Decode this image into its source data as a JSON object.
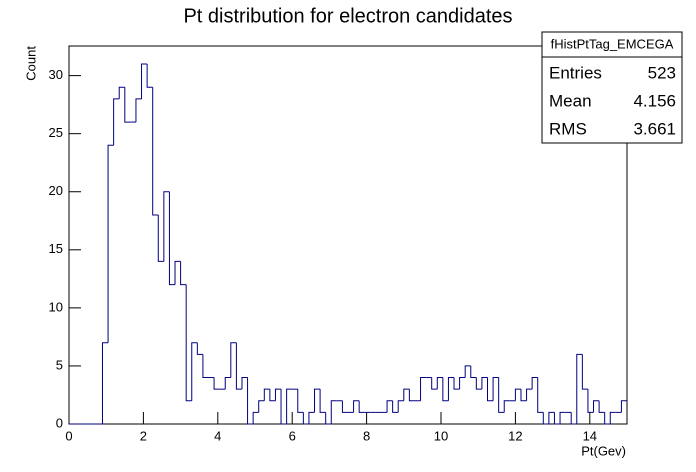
{
  "chart_data": {
    "type": "histogram",
    "title": "Pt distribution for electron candidates",
    "x_label": "Pt(Gev)",
    "y_label": "Count",
    "color": "#000080",
    "bins": [
      0,
      0.15,
      0.3,
      0.45,
      0.6,
      0.75,
      0.9,
      1.05,
      1.2,
      1.35,
      1.5,
      1.65,
      1.8,
      1.95,
      2.1,
      2.25,
      2.4,
      2.55,
      2.7,
      2.85,
      3,
      3.15,
      3.3,
      3.45,
      3.6,
      3.75,
      3.9,
      4.05,
      4.2,
      4.35,
      4.5,
      4.65,
      4.8,
      4.95,
      5.1,
      5.25,
      5.4,
      5.55,
      5.7,
      5.85,
      6,
      6.15,
      6.3,
      6.45,
      6.6,
      6.75,
      6.9,
      7.05,
      7.2,
      7.35,
      7.5,
      7.65,
      7.8,
      7.95,
      8.1,
      8.25,
      8.4,
      8.55,
      8.7,
      8.85,
      9,
      9.15,
      9.3,
      9.45,
      9.6,
      9.75,
      9.9,
      10.05,
      10.2,
      10.35,
      10.5,
      10.65,
      10.8,
      10.95,
      11.1,
      11.25,
      11.4,
      11.55,
      11.7,
      11.85,
      12,
      12.15,
      12.3,
      12.45,
      12.6,
      12.75,
      12.9,
      13.05,
      13.2,
      13.35,
      13.5,
      13.65,
      13.8,
      13.95,
      14.1,
      14.25,
      14.4,
      14.55,
      14.7,
      14.85,
      15
    ],
    "values": [
      0,
      0,
      0,
      0,
      0,
      0,
      7,
      24,
      28,
      29,
      26,
      26,
      28,
      31,
      29,
      18,
      14,
      20,
      12,
      14,
      12,
      2,
      7,
      6,
      4,
      4,
      3,
      3,
      4,
      7,
      3,
      4,
      0,
      1,
      2,
      3,
      2,
      3,
      0,
      3,
      3,
      1,
      0,
      1,
      3,
      1,
      0,
      2,
      2,
      1,
      1,
      2,
      1,
      1,
      1,
      1,
      1,
      2,
      1,
      2,
      3,
      2,
      2,
      4,
      4,
      3,
      4,
      2,
      4,
      3,
      4,
      5,
      4,
      3,
      4,
      2,
      4,
      1,
      2,
      2,
      3,
      2,
      3,
      4,
      1,
      0,
      1,
      0,
      1,
      1,
      0,
      6,
      3,
      1,
      2,
      1,
      0,
      1,
      1,
      2
    ],
    "xlim": [
      0,
      15
    ],
    "ylim": [
      0,
      32.55
    ],
    "xticks": [
      0,
      2,
      4,
      6,
      8,
      10,
      12,
      14
    ],
    "yticks": [
      0,
      5,
      10,
      15,
      20,
      25,
      30
    ],
    "stats": {
      "name": "fHistPtTag_EMCEGA",
      "rows": [
        [
          "Entries",
          523
        ],
        [
          "Mean",
          4.156
        ],
        [
          "RMS",
          3.661
        ]
      ]
    }
  }
}
